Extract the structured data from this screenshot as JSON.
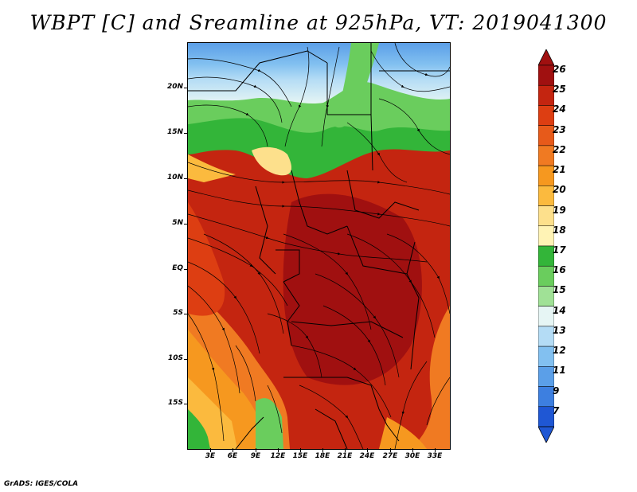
{
  "title": "WBPT [C] and Sreamline at 925hPa, VT: 2019041300",
  "credit": "GrADS: IGES/COLA",
  "map": {
    "lat_labels": [
      "20N",
      "15N",
      "10N",
      "5N",
      "EQ",
      "5S",
      "10S",
      "15S"
    ],
    "lon_labels": [
      "3E",
      "6E",
      "9E",
      "12E",
      "15E",
      "18E",
      "21E",
      "24E",
      "27E",
      "30E",
      "33E"
    ],
    "fields": {
      "variable": "WBPT",
      "units": "C",
      "level": "925hPa",
      "overlay": "Streamline"
    }
  },
  "colorbar": {
    "levels": [
      "26",
      "25",
      "24",
      "23",
      "22",
      "21",
      "20",
      "19",
      "18",
      "17",
      "16",
      "15",
      "14",
      "13",
      "12",
      "11",
      "9",
      "7"
    ],
    "colors": [
      "#a01010",
      "#c42510",
      "#dd3e12",
      "#e75a1a",
      "#f07a22",
      "#f6981f",
      "#fbba3e",
      "#fde08c",
      "#fff3b5",
      "#33b539",
      "#6acd5d",
      "#a0e196",
      "#e6f5f4",
      "#b4dcf5",
      "#82c0f0",
      "#5b9fe8",
      "#3d7fe0",
      "#1f57d4"
    ]
  }
}
